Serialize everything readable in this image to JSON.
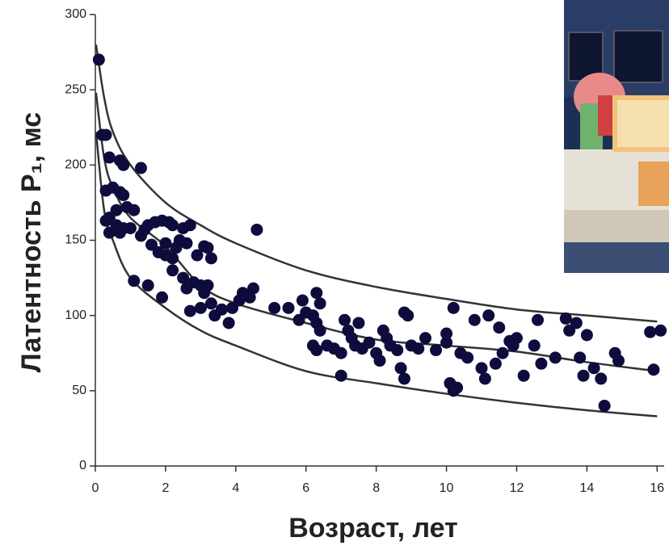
{
  "chart_data": {
    "type": "scatter",
    "x_label": "Возраст, лет",
    "y_label": "Латентность P₁, мс",
    "xlim": [
      0,
      16.2
    ],
    "ylim": [
      0,
      300
    ],
    "xticks": [
      0,
      2,
      4,
      6,
      8,
      10,
      12,
      14,
      16
    ],
    "yticks": [
      0,
      50,
      100,
      150,
      200,
      250,
      300
    ],
    "color": "#0e0c3c",
    "curve_color": "#333333",
    "points": {
      "x": [
        0.1,
        0.3,
        0.2,
        0.4,
        0.7,
        0.8,
        1.3,
        0.3,
        0.5,
        0.7,
        0.8,
        0.9,
        0.4,
        0.6,
        1.1,
        0.3,
        0.6,
        0.8,
        0.4,
        0.7,
        1.0,
        1.3,
        1.4,
        1.5,
        1.7,
        1.9,
        2.1,
        2.2,
        2.5,
        2.7,
        1.6,
        1.8,
        2.0,
        2.0,
        2.2,
        2.3,
        2.4,
        2.6,
        2.9,
        3.1,
        3.2,
        3.3,
        2.2,
        2.5,
        2.6,
        2.8,
        3.0,
        3.1,
        3.2,
        3.3,
        3.0,
        2.7,
        3.4,
        3.6,
        3.8,
        3.9,
        4.1,
        4.2,
        4.5,
        4.6,
        4.4,
        1.1,
        1.5,
        1.9,
        5.1,
        5.5,
        5.9,
        6.3,
        6.4,
        6.0,
        6.2,
        5.8,
        6.3,
        6.4,
        6.2,
        6.3,
        6.6,
        6.8,
        7.0,
        7.0,
        7.1,
        7.2,
        7.3,
        7.4,
        7.5,
        7.6,
        7.8,
        8.0,
        8.1,
        8.2,
        8.3,
        8.4,
        8.6,
        8.7,
        8.8,
        8.9,
        8.8,
        9.0,
        9.2,
        9.4,
        9.7,
        10.0,
        10.0,
        10.2,
        10.1,
        10.2,
        10.3,
        10.4,
        10.6,
        10.8,
        11.0,
        11.1,
        11.2,
        11.4,
        11.5,
        11.6,
        11.8,
        11.9,
        12.0,
        12.2,
        12.5,
        12.6,
        12.7,
        13.1,
        13.4,
        13.5,
        13.7,
        13.8,
        13.9,
        14.0,
        14.2,
        14.4,
        14.5,
        14.8,
        14.9,
        15.8,
        15.9,
        16.1
      ],
      "y": [
        270,
        220,
        220,
        205,
        203,
        200,
        198,
        183,
        185,
        182,
        180,
        172,
        165,
        170,
        170,
        163,
        160,
        158,
        155,
        155,
        158,
        153,
        157,
        160,
        162,
        163,
        162,
        160,
        158,
        160,
        147,
        142,
        140,
        148,
        138,
        145,
        150,
        148,
        140,
        146,
        145,
        138,
        130,
        125,
        118,
        122,
        120,
        115,
        120,
        108,
        105,
        103,
        100,
        104,
        95,
        105,
        110,
        115,
        118,
        157,
        112,
        123,
        120,
        112,
        105,
        105,
        110,
        115,
        108,
        102,
        100,
        97,
        95,
        90,
        80,
        77,
        80,
        78,
        75,
        60,
        97,
        90,
        85,
        80,
        95,
        78,
        82,
        75,
        70,
        90,
        85,
        80,
        77,
        65,
        58,
        100,
        102,
        80,
        78,
        85,
        77,
        82,
        88,
        105,
        55,
        50,
        52,
        75,
        72,
        97,
        65,
        58,
        100,
        68,
        92,
        75,
        83,
        80,
        85,
        60,
        80,
        97,
        68,
        72,
        98,
        90,
        95,
        72,
        60,
        87,
        65,
        58,
        40,
        75,
        70,
        89,
        64,
        90
      ]
    },
    "fit_curves": [
      {
        "x": [
          0.02,
          0.25,
          0.5,
          1,
          2,
          3,
          4,
          6,
          8,
          10,
          12,
          14,
          16
        ],
        "y": [
          280,
          245,
          222,
          200,
          175,
          160,
          148,
          130,
          119,
          111,
          104,
          100,
          96
        ]
      },
      {
        "x": [
          0.02,
          0.25,
          0.5,
          1,
          2,
          3,
          4,
          6,
          8,
          10,
          12,
          14,
          16
        ],
        "y": [
          248,
          205,
          185,
          165,
          146,
          120,
          108,
          95,
          84,
          80,
          76,
          69,
          63
        ]
      },
      {
        "x": [
          0.02,
          0.25,
          0.5,
          1,
          2,
          3,
          4,
          6,
          8,
          10,
          12,
          14,
          16
        ],
        "y": [
          222,
          170,
          150,
          125,
          105,
          90,
          80,
          63,
          55,
          48,
          42,
          37,
          33
        ]
      }
    ]
  }
}
